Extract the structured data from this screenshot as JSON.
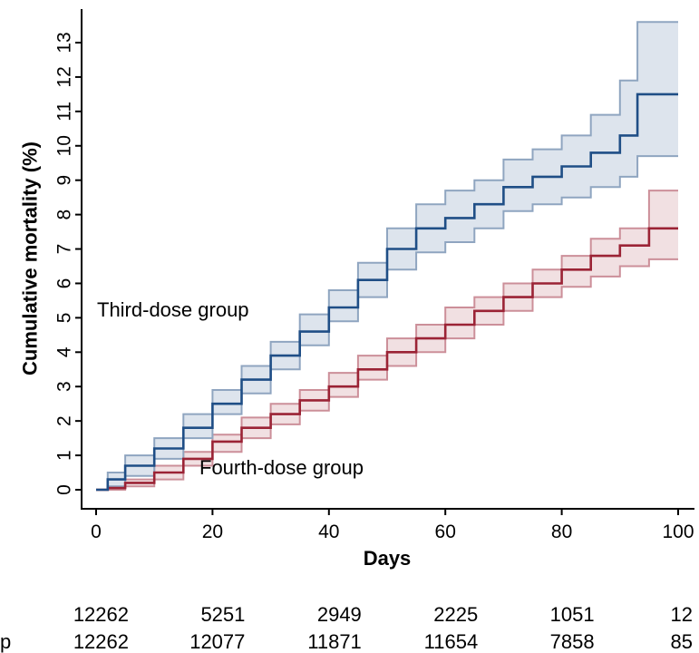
{
  "chart_data": {
    "type": "line",
    "title": "",
    "xlabel": "Days",
    "ylabel": "Cumulative mortality (%)",
    "xlim": [
      0,
      100
    ],
    "ylim": [
      0,
      13
    ],
    "x_ticks": [
      0,
      20,
      40,
      60,
      80,
      100
    ],
    "y_ticks": [
      0,
      1,
      2,
      3,
      4,
      5,
      6,
      7,
      8,
      9,
      10,
      11,
      12,
      13
    ],
    "grid": false,
    "colors": {
      "third_line": "#1f4e86",
      "third_band_fill": "#d7dfea",
      "third_band_edge": "#8fa5c0",
      "fourth_line": "#9b2335",
      "fourth_band_fill": "#eedadd",
      "fourth_band_edge": "#cc8f99"
    },
    "series": [
      {
        "name": "Third-dose group",
        "x": [
          0,
          2,
          5,
          10,
          15,
          20,
          25,
          30,
          35,
          40,
          45,
          50,
          55,
          60,
          65,
          70,
          75,
          80,
          85,
          90,
          93,
          100
        ],
        "y": [
          0,
          0.3,
          0.7,
          1.2,
          1.8,
          2.5,
          3.2,
          3.9,
          4.6,
          5.3,
          6.1,
          7.0,
          7.6,
          7.9,
          8.3,
          8.8,
          9.1,
          9.4,
          9.8,
          10.3,
          11.5,
          11.5
        ],
        "lower": [
          0,
          0.1,
          0.4,
          0.9,
          1.5,
          2.2,
          2.8,
          3.5,
          4.2,
          4.9,
          5.6,
          6.4,
          6.9,
          7.2,
          7.6,
          8.1,
          8.3,
          8.5,
          8.8,
          9.1,
          9.7,
          9.7
        ],
        "upper": [
          0,
          0.5,
          1.0,
          1.5,
          2.2,
          2.9,
          3.6,
          4.3,
          5.1,
          5.8,
          6.6,
          7.6,
          8.3,
          8.7,
          9.0,
          9.6,
          9.9,
          10.3,
          10.9,
          11.9,
          13.6,
          13.6
        ]
      },
      {
        "name": "Fourth-dose group",
        "x": [
          0,
          2,
          5,
          10,
          15,
          20,
          25,
          30,
          35,
          40,
          45,
          50,
          55,
          60,
          65,
          70,
          75,
          80,
          85,
          90,
          95,
          100
        ],
        "y": [
          0,
          0.05,
          0.2,
          0.5,
          0.9,
          1.4,
          1.8,
          2.2,
          2.6,
          3.0,
          3.5,
          4.0,
          4.4,
          4.8,
          5.2,
          5.6,
          6.0,
          6.4,
          6.8,
          7.1,
          7.6,
          7.6
        ],
        "lower": [
          0,
          0.0,
          0.1,
          0.3,
          0.7,
          1.1,
          1.5,
          1.9,
          2.3,
          2.7,
          3.2,
          3.6,
          4.0,
          4.4,
          4.8,
          5.2,
          5.6,
          5.9,
          6.2,
          6.5,
          6.7,
          6.7
        ],
        "upper": [
          0,
          0.1,
          0.3,
          0.7,
          1.1,
          1.6,
          2.1,
          2.5,
          2.9,
          3.4,
          3.9,
          4.4,
          4.8,
          5.3,
          5.6,
          6.0,
          6.4,
          6.8,
          7.3,
          7.6,
          8.7,
          8.7
        ]
      }
    ],
    "annotations": {
      "third_label": "Third-dose group",
      "fourth_label": "Fourth-dose group"
    },
    "risk_table": {
      "row_prefixes": [
        "",
        "p"
      ],
      "rows": [
        [
          "12262",
          "5251",
          "2949",
          "2225",
          "1051",
          "12"
        ],
        [
          "12262",
          "12077",
          "11871",
          "11654",
          "7858",
          "85"
        ]
      ]
    }
  }
}
